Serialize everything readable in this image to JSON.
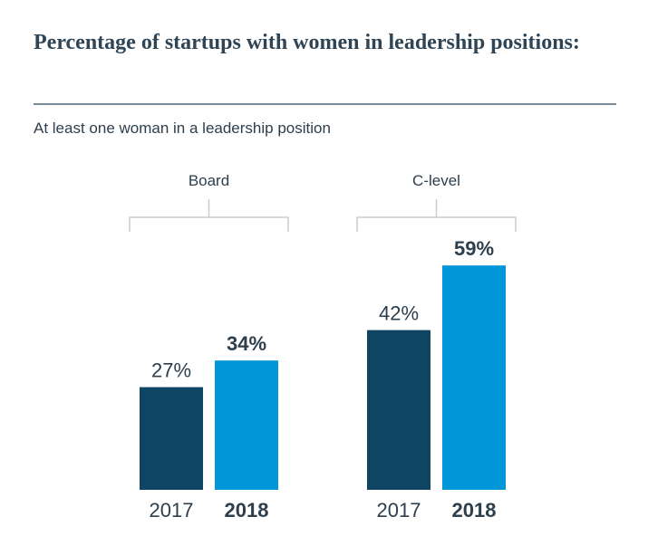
{
  "title": "Percentage of startups with women in leadership positions:",
  "subtitle": "At least one woman in a leadership position",
  "colors": {
    "y2017": "#0e4563",
    "y2018": "#0096d8",
    "text": "#2d3e4c",
    "bracket": "#c6cdd3"
  },
  "chart_data": {
    "type": "bar",
    "groups": [
      "Board",
      "C-level"
    ],
    "categories": [
      "2017",
      "2018"
    ],
    "series": [
      {
        "name": "Board",
        "values": [
          27,
          34
        ],
        "labels": [
          "27%",
          "34%"
        ]
      },
      {
        "name": "C-level",
        "values": [
          42,
          59
        ],
        "labels": [
          "42%",
          "59%"
        ]
      }
    ],
    "unit": "%",
    "ylim": [
      0,
      100
    ],
    "grid": false,
    "legend": "none"
  }
}
